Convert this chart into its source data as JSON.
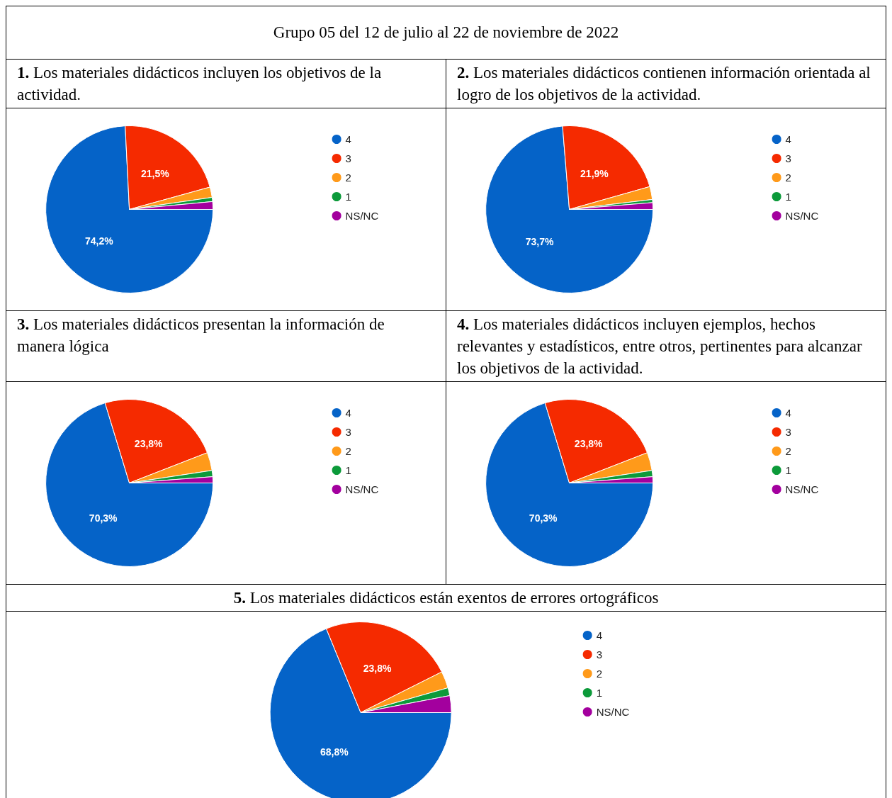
{
  "chart_data": [
    {
      "type": "pie",
      "annotations": [
        "Grupo 05 del 12 de julio al 22 de noviembre de 2022"
      ],
      "title": "1. Los materiales didácticos incluyen los objetivos de la actividad.",
      "categories": [
        "4",
        "3",
        "2",
        "1",
        "NS/NC"
      ],
      "values": [
        74.2,
        21.5,
        2.0,
        0.8,
        1.5
      ],
      "value_labels": [
        "74,2%",
        "21,5%",
        null,
        null,
        null
      ],
      "colors": [
        "#0563c8",
        "#f52a00",
        "#ff9a1a",
        "#0c9a3a",
        "#a3009e"
      ],
      "legend": "top right"
    },
    {
      "type": "pie",
      "title": "2. Los materiales didácticos contienen información orientada al logro de los objetivos de la actividad.",
      "categories": [
        "4",
        "3",
        "2",
        "1",
        "NS/NC"
      ],
      "values": [
        73.7,
        21.9,
        2.5,
        0.6,
        1.3
      ],
      "value_labels": [
        "73,7%",
        "21,9%",
        null,
        null,
        null
      ],
      "colors": [
        "#0563c8",
        "#f52a00",
        "#ff9a1a",
        "#0c9a3a",
        "#a3009e"
      ],
      "legend": "top right"
    },
    {
      "type": "pie",
      "title": "3. Los materiales didácticos presentan la información de manera lógica",
      "categories": [
        "4",
        "3",
        "2",
        "1",
        "NS/NC"
      ],
      "values": [
        70.3,
        23.8,
        3.5,
        1.2,
        1.2
      ],
      "value_labels": [
        "70,3%",
        "23,8%",
        null,
        null,
        null
      ],
      "colors": [
        "#0563c8",
        "#f52a00",
        "#ff9a1a",
        "#0c9a3a",
        "#a3009e"
      ],
      "legend": "top right"
    },
    {
      "type": "pie",
      "title": "4. Los materiales didácticos incluyen ejemplos, hechos relevantes y estadísticos, entre otros, pertinentes para alcanzar los objetivos de la actividad.",
      "categories": [
        "4",
        "3",
        "2",
        "1",
        "NS/NC"
      ],
      "values": [
        70.3,
        23.8,
        3.5,
        1.2,
        1.2
      ],
      "value_labels": [
        "70,3%",
        "23,8%",
        null,
        null,
        null
      ],
      "colors": [
        "#0563c8",
        "#f52a00",
        "#ff9a1a",
        "#0c9a3a",
        "#a3009e"
      ],
      "legend": "top right"
    },
    {
      "type": "pie",
      "title": "5. Los materiales didácticos están exentos de errores ortográficos",
      "categories": [
        "4",
        "3",
        "2",
        "1",
        "NS/NC"
      ],
      "values": [
        68.8,
        23.8,
        3.0,
        1.4,
        3.0
      ],
      "value_labels": [
        "68,8%",
        "23,8%",
        null,
        null,
        null
      ],
      "colors": [
        "#0563c8",
        "#f52a00",
        "#ff9a1a",
        "#0c9a3a",
        "#a3009e"
      ],
      "legend": "top right"
    }
  ]
}
